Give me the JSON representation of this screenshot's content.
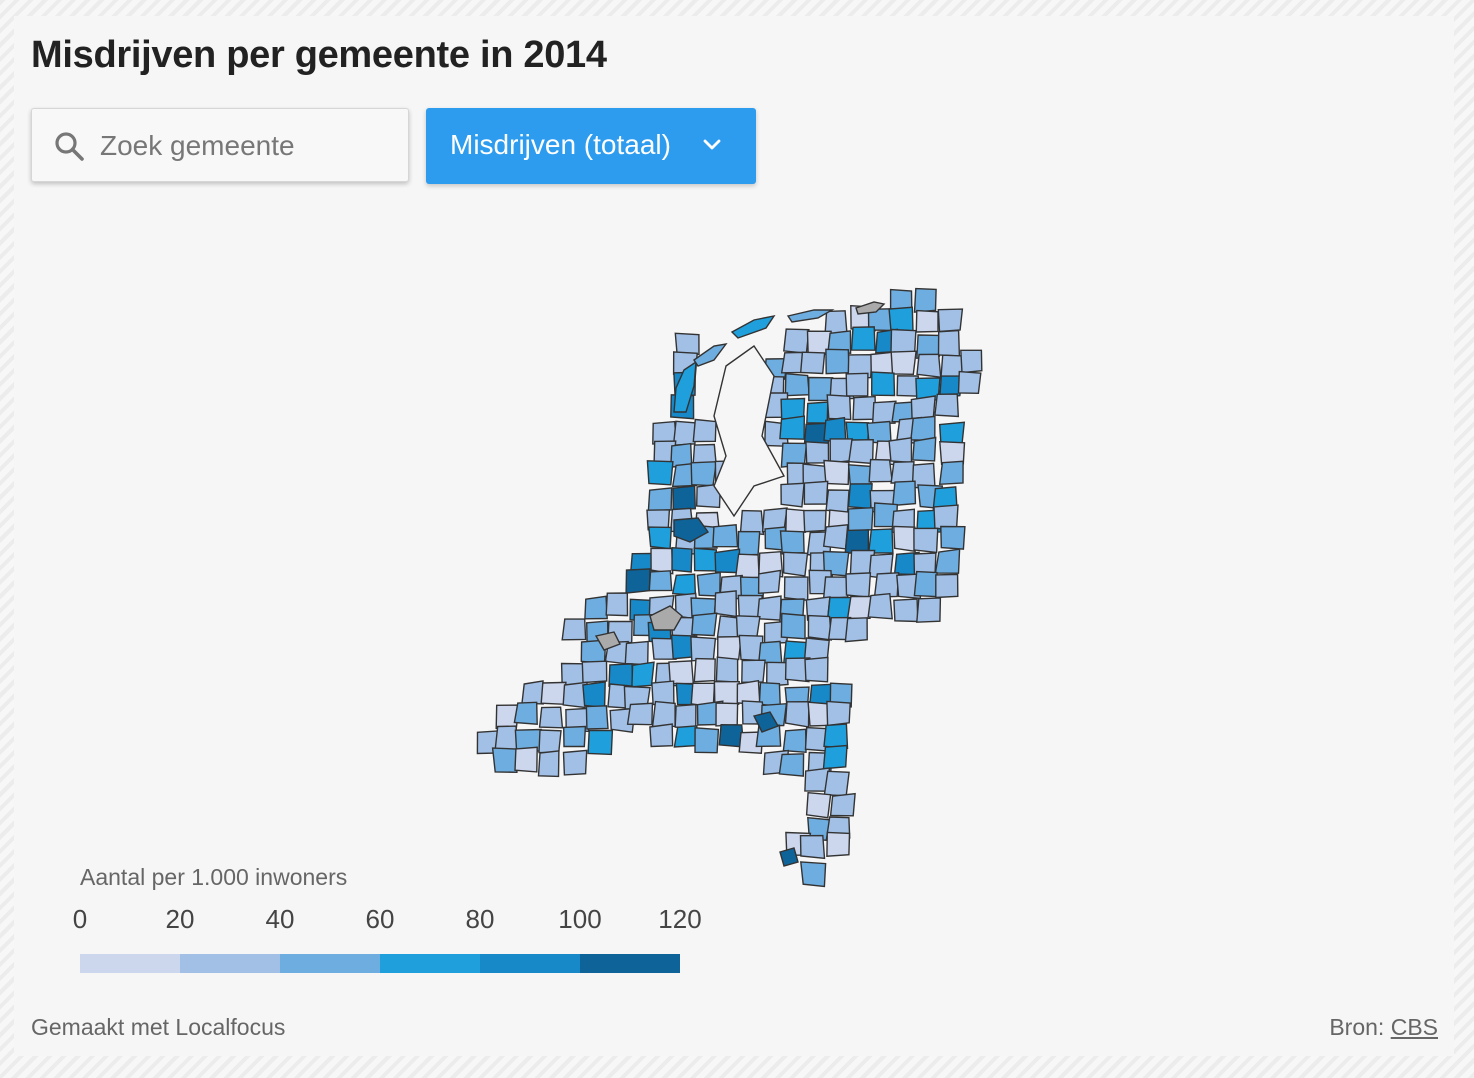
{
  "title": "Misdrijven per gemeente in 2014",
  "search": {
    "placeholder": "Zoek gemeente",
    "icon": "search-icon"
  },
  "dropdown": {
    "selected": "Misdrijven (totaal)",
    "icon": "chevron-down-icon"
  },
  "legend": {
    "title": "Aantal per 1.000 inwoners",
    "ticks": [
      "0",
      "20",
      "40",
      "60",
      "80",
      "100",
      "120"
    ],
    "colors": [
      "#ccd6ed",
      "#a2c0e6",
      "#6eaddf",
      "#1fa0dc",
      "#1788c8",
      "#0e6399"
    ]
  },
  "map": {
    "border_color": "#333333",
    "no_data_color": "#aaaaaa"
  },
  "footer": {
    "made_with": "Gemaakt met Localfocus",
    "source_label": "Bron:",
    "source_link": "CBS"
  }
}
